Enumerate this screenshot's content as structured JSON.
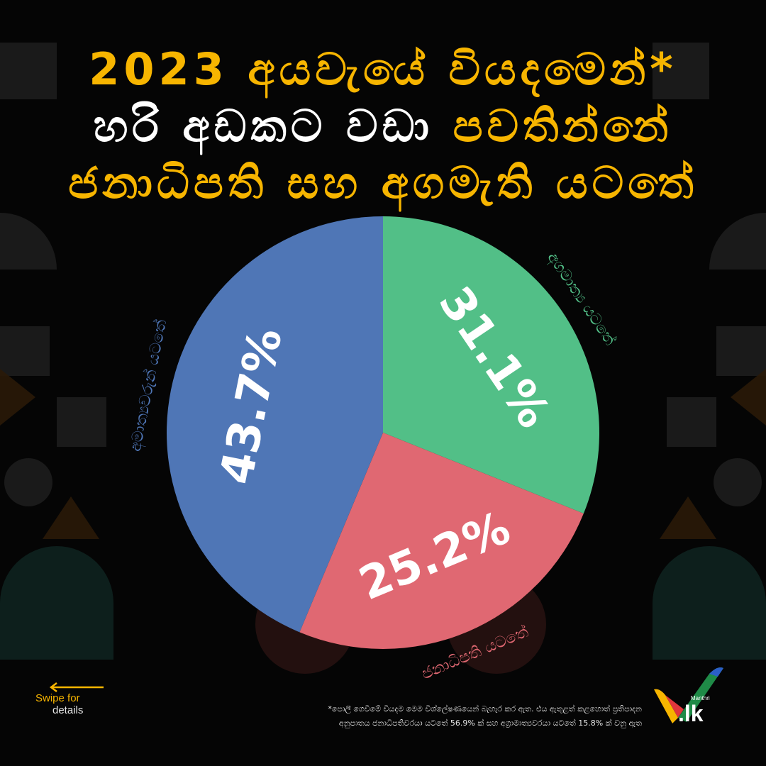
{
  "title": {
    "line1": {
      "yellow": "2023 අයවැයේ වියදමෙන්*"
    },
    "line2": {
      "white": "හරි අඩකට වඩා ",
      "yellow": "පවතින්නේ"
    },
    "line3": {
      "yellow": "ජනාධිපති සහ අගමැති යටතේ"
    }
  },
  "chart_data": {
    "type": "pie",
    "slices": [
      {
        "label": "අගමාත්‍ය යටතේ",
        "value": 31.1,
        "display": "31.1%",
        "color": "#52bf87"
      },
      {
        "label": "ජනාධිපති යටතේ",
        "value": 25.2,
        "display": "25.2%",
        "color": "#e06872"
      },
      {
        "label": "අමාත්‍යවරුන් යටතේ",
        "value": 43.7,
        "display": "43.7%",
        "color": "#4f76b6"
      }
    ]
  },
  "swipe": {
    "line1": "Swipe for",
    "line2": "details"
  },
  "footnote": {
    "line1": "*පොලී ගෙවීමේ වියදම මෙම විශ්ලේෂණයෙන් බැහැර කර ඇත. එය ඇතුළත් කළහොත් ප්‍රතිපාදන",
    "line2": "අනුපාතය ජනාධිපතිවරයා යටතේ 56.9% ක් සහ අග්‍රාමාත්‍යවරයා යටතේ 15.8% ක් වනු ඇත"
  },
  "logo": {
    "brand": "Manthri",
    "tld": ".lk"
  },
  "colors": {
    "accent": "#f7b500",
    "background": "#050505"
  }
}
